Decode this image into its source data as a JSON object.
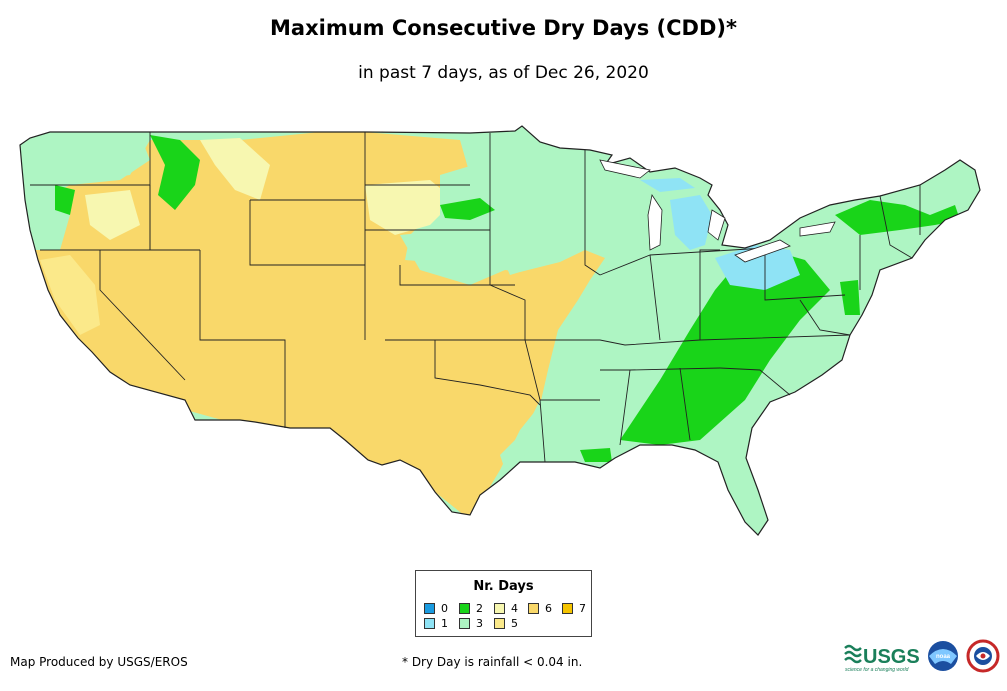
{
  "title": "Maximum Consecutive Dry Days (CDD)*",
  "subtitle": "in past 7 days, as of Dec 26, 2020",
  "legend": {
    "title": "Nr. Days",
    "items": [
      {
        "label": "0",
        "color": "#1a9be0"
      },
      {
        "label": "1",
        "color": "#8fe3f5"
      },
      {
        "label": "2",
        "color": "#19d419"
      },
      {
        "label": "3",
        "color": "#aef5c3"
      },
      {
        "label": "4",
        "color": "#f7f7b0"
      },
      {
        "label": "5",
        "color": "#fbe98a"
      },
      {
        "label": "6",
        "color": "#f9d86a"
      },
      {
        "label": "7",
        "color": "#f5c400"
      }
    ]
  },
  "credit": "Map Produced by USGS/EROS",
  "footnote": "* Dry Day is rainfall < 0.04 in.",
  "logos": {
    "usgs": "USGS",
    "usgs_tagline": "science for a changing world",
    "noaa": "noaa"
  },
  "colors": {
    "land_dry": "#f9d86a",
    "land_moist": "#aef5c3",
    "land_wet": "#19d419",
    "border": "#222222"
  }
}
